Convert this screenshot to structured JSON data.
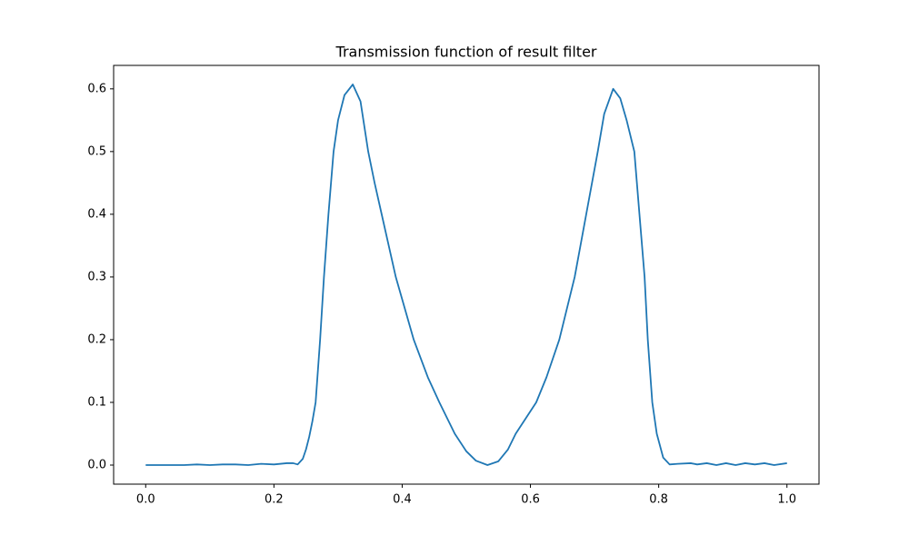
{
  "chart_data": {
    "type": "line",
    "title": "Transmission function of result filter",
    "x": [
      0,
      0.02,
      0.04,
      0.06,
      0.08,
      0.1,
      0.12,
      0.14,
      0.16,
      0.18,
      0.2,
      0.22,
      0.23,
      0.237,
      0.245,
      0.25,
      0.255,
      0.26,
      0.265,
      0.272,
      0.278,
      0.285,
      0.293,
      0.3,
      0.31,
      0.323,
      0.335,
      0.347,
      0.357,
      0.368,
      0.39,
      0.418,
      0.44,
      0.458,
      0.482,
      0.5,
      0.515,
      0.533,
      0.55,
      0.565,
      0.577,
      0.593,
      0.609,
      0.625,
      0.645,
      0.669,
      0.687,
      0.705,
      0.715,
      0.729,
      0.74,
      0.75,
      0.762,
      0.77,
      0.778,
      0.783,
      0.79,
      0.797,
      0.807,
      0.817,
      0.83,
      0.85,
      0.86,
      0.875,
      0.89,
      0.905,
      0.92,
      0.935,
      0.95,
      0.965,
      0.98,
      1.0
    ],
    "values": [
      0,
      0,
      0,
      0,
      0.001,
      0,
      0.001,
      0.001,
      0,
      0.002,
      0.001,
      0.003,
      0.003,
      0.001,
      0.01,
      0.025,
      0.045,
      0.07,
      0.1,
      0.2,
      0.3,
      0.4,
      0.5,
      0.55,
      0.59,
      0.607,
      0.58,
      0.5,
      0.45,
      0.4,
      0.3,
      0.2,
      0.14,
      0.1,
      0.05,
      0.022,
      0.007,
      0,
      0.006,
      0.025,
      0.05,
      0.075,
      0.1,
      0.14,
      0.2,
      0.3,
      0.4,
      0.5,
      0.56,
      0.6,
      0.585,
      0.55,
      0.5,
      0.4,
      0.3,
      0.2,
      0.1,
      0.05,
      0.012,
      0.001,
      0.002,
      0.003,
      0.001,
      0.003,
      0,
      0.003,
      0,
      0.003,
      0.001,
      0.003,
      0,
      0.003
    ],
    "color": "#1f77b4",
    "xlim": [
      -0.05,
      1.05
    ],
    "xticks": [
      {
        "value": 0,
        "label": "0.0"
      },
      0.2,
      0.4,
      0.6,
      0.8,
      {
        "value": 1,
        "label": "1.0"
      }
    ],
    "ylim": [
      -0.0304,
      0.6374
    ],
    "yticks": [
      {
        "value": 0,
        "label": "0.0"
      },
      0.1,
      0.2,
      0.3,
      0.4,
      0.5,
      0.6
    ],
    "grid": false
  }
}
